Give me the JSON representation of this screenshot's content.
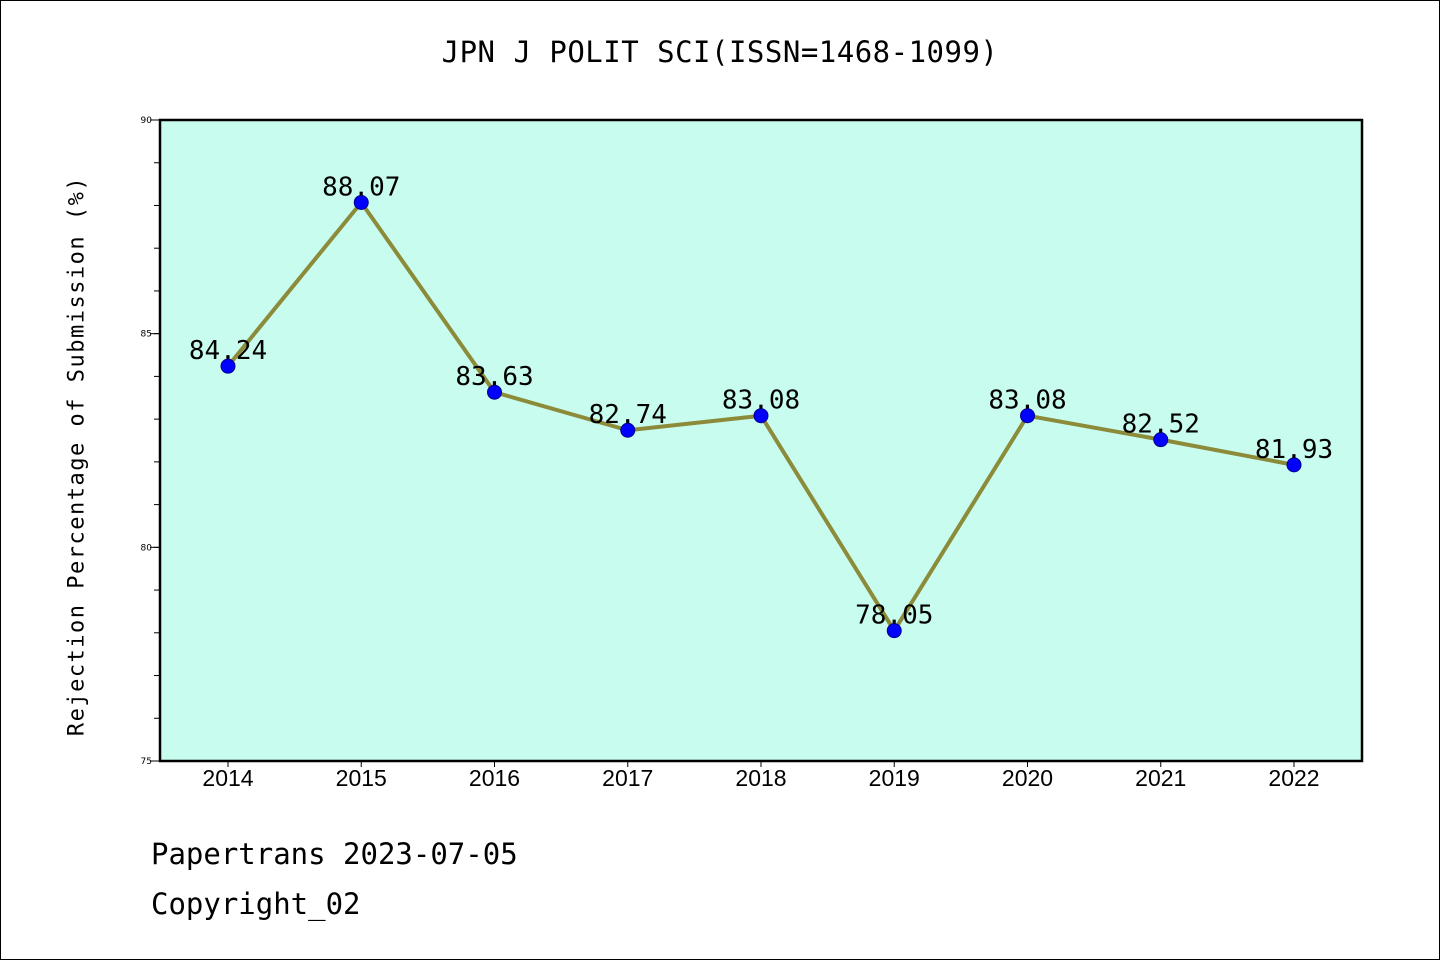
{
  "chart_data": {
    "type": "line",
    "title": "JPN J POLIT SCI(ISSN=1468-1099)",
    "xlabel": "",
    "ylabel": "Rejection Percentage of Submission (%)",
    "categories": [
      "2014",
      "2015",
      "2016",
      "2017",
      "2018",
      "2019",
      "2020",
      "2021",
      "2022"
    ],
    "series": [
      {
        "values": [
          84.24,
          88.07,
          83.63,
          82.74,
          83.08,
          78.05,
          83.08,
          82.52,
          81.93
        ],
        "data_labels": [
          "84.24",
          "88.07",
          "83.63",
          "82.74",
          "83.08",
          "78.05",
          "83.08",
          "82.52",
          "81.93"
        ]
      }
    ],
    "ylim": [
      75,
      90
    ],
    "yticks": [
      "75",
      "80",
      "85",
      "90"
    ],
    "y_minor_step": 1,
    "grid": false,
    "legend": "none",
    "colors": {
      "plot_background": "#c8fcee",
      "line": "#8b8b3a",
      "marker": "#0000ff",
      "marker_edge": "#00008b"
    }
  },
  "footer": {
    "date_line": "Papertrans 2023-07-05",
    "copyright_line": "Copyright_02"
  }
}
